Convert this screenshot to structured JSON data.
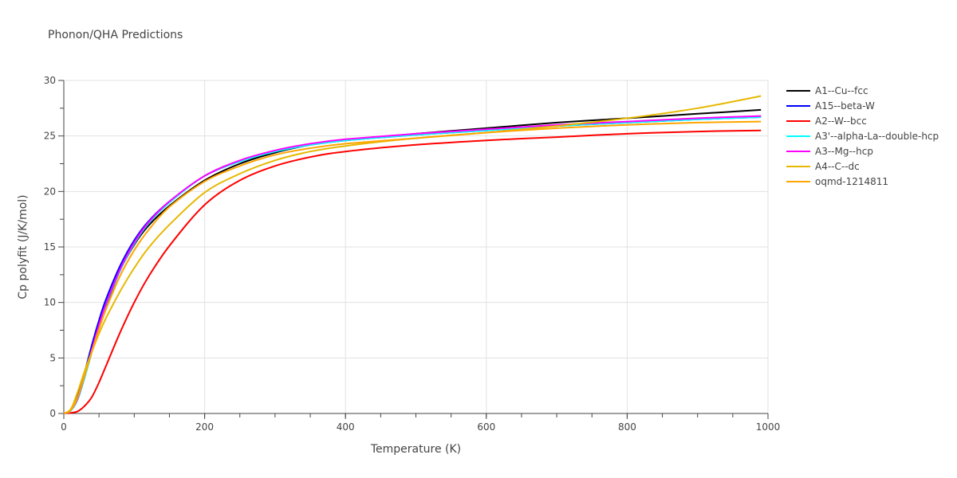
{
  "chart_data": {
    "type": "line",
    "title": "Phonon/QHA Predictions",
    "xlabel": "Temperature (K)",
    "ylabel": "Cp polyfit (J/K/mol)",
    "xlim": [
      0,
      1000
    ],
    "ylim": [
      0,
      30
    ],
    "xticks": [
      0,
      200,
      400,
      600,
      800,
      1000
    ],
    "yticks": [
      0,
      5,
      10,
      15,
      20,
      25,
      30
    ],
    "grid": true,
    "legend_position": "right",
    "x": [
      0,
      10,
      20,
      30,
      40,
      50,
      60,
      80,
      100,
      120,
      150,
      200,
      250,
      300,
      350,
      400,
      500,
      600,
      700,
      800,
      900,
      990
    ],
    "series": [
      {
        "name": "A1--Cu--fcc",
        "color": "#000000",
        "values": [
          0,
          0.3,
          1.5,
          3.4,
          5.6,
          7.8,
          9.7,
          12.9,
          15.2,
          16.9,
          18.7,
          21.0,
          22.5,
          23.5,
          24.2,
          24.6,
          25.2,
          25.7,
          26.2,
          26.6,
          27.0,
          27.35
        ]
      },
      {
        "name": "A15--beta-W",
        "color": "#0000ff",
        "values": [
          0,
          0.3,
          1.6,
          3.8,
          6.2,
          8.4,
          10.3,
          13.3,
          15.6,
          17.3,
          19.1,
          21.4,
          22.7,
          23.6,
          24.2,
          24.6,
          25.1,
          25.5,
          25.9,
          26.2,
          26.5,
          26.7
        ]
      },
      {
        "name": "A2--W--bcc",
        "color": "#ff0000",
        "values": [
          0,
          0.05,
          0.2,
          0.7,
          1.5,
          2.8,
          4.3,
          7.3,
          10.0,
          12.3,
          15.1,
          18.8,
          21.0,
          22.3,
          23.1,
          23.6,
          24.2,
          24.6,
          24.9,
          25.2,
          25.4,
          25.5
        ]
      },
      {
        "name": "A3'--alpha-La--double-hcp",
        "color": "#00ffff",
        "values": [
          0,
          0.25,
          1.3,
          3.3,
          5.6,
          7.8,
          9.8,
          12.9,
          15.3,
          17.1,
          19.0,
          21.4,
          22.7,
          23.6,
          24.2,
          24.6,
          25.1,
          25.5,
          25.9,
          26.2,
          26.5,
          26.7
        ]
      },
      {
        "name": "A3--Mg--hcp",
        "color": "#ff00ff",
        "values": [
          0,
          0.3,
          1.4,
          3.5,
          5.8,
          8.0,
          9.9,
          13.0,
          15.4,
          17.2,
          19.1,
          21.4,
          22.8,
          23.7,
          24.3,
          24.7,
          25.2,
          25.6,
          26.0,
          26.3,
          26.6,
          26.8
        ]
      },
      {
        "name": "A4--C--dc",
        "color": "#e6b800",
        "values": [
          0,
          0.4,
          2.0,
          3.9,
          5.6,
          7.2,
          8.6,
          11.0,
          13.1,
          14.9,
          17.0,
          19.9,
          21.6,
          22.8,
          23.6,
          24.1,
          24.8,
          25.3,
          25.9,
          26.6,
          27.5,
          28.6
        ]
      },
      {
        "name": "oqmd-1214811",
        "color": "#ffa500",
        "values": [
          0,
          0.3,
          1.5,
          3.5,
          5.6,
          7.6,
          9.4,
          12.4,
          14.7,
          16.5,
          18.6,
          20.9,
          22.3,
          23.3,
          23.9,
          24.3,
          24.8,
          25.3,
          25.7,
          26.0,
          26.2,
          26.3
        ]
      }
    ]
  }
}
